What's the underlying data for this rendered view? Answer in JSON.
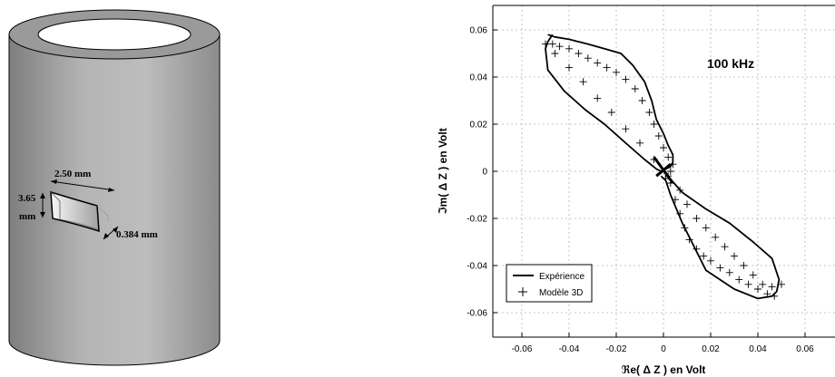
{
  "tube": {
    "width_label": "2.50 mm",
    "height_label_1": "3.65",
    "height_label_2": "mm",
    "depth_label": "0.384 mm"
  },
  "chart_data": {
    "type": "line",
    "annotation": "100 kHz",
    "xlabel": "ℜe( Δ Z ) en Volt",
    "ylabel": "ℑm( Δ Z ) en Volt",
    "xlim": [
      -0.065,
      0.065
    ],
    "ylim": [
      -0.065,
      0.065
    ],
    "x_ticks": [
      "-0.06",
      "-0.04",
      "-0.02",
      "0",
      "0.02",
      "0.04",
      "0.06"
    ],
    "y_ticks": [
      "0.06",
      "0.04",
      "0.02",
      "0",
      "-0.02",
      "-0.04",
      "-0.06"
    ],
    "grid": true,
    "legend_position": "bottom-left",
    "series": [
      {
        "name": "Expérience",
        "style": "solid line",
        "x": [
          -0.049,
          -0.046,
          -0.04,
          -0.032,
          -0.025,
          -0.018,
          -0.013,
          -0.008,
          -0.005,
          -0.003,
          0.0,
          0.002,
          0.004,
          0.004,
          0.003,
          0.001,
          -0.001,
          -0.003,
          -0.008,
          -0.016,
          -0.025,
          -0.033,
          -0.042,
          -0.049,
          -0.05,
          -0.049,
          -0.047,
          0.0,
          0.008,
          0.018,
          0.028,
          0.038,
          0.046,
          0.049,
          0.048,
          0.046,
          0.04,
          0.03,
          0.018,
          0.008,
          0.003,
          0.001,
          -0.001
        ],
        "y": [
          0.058,
          0.057,
          0.056,
          0.054,
          0.052,
          0.05,
          0.045,
          0.038,
          0.03,
          0.022,
          0.016,
          0.011,
          0.007,
          0.004,
          0.002,
          0.001,
          0.0,
          0.001,
          0.005,
          0.012,
          0.02,
          0.026,
          0.034,
          0.043,
          0.052,
          0.055,
          0.058,
          0.0,
          -0.009,
          -0.016,
          -0.022,
          -0.03,
          -0.037,
          -0.046,
          -0.051,
          -0.053,
          -0.054,
          -0.05,
          -0.042,
          -0.022,
          -0.01,
          -0.004,
          -0.002
        ]
      },
      {
        "name": "Modèle 3D",
        "style": "plus markers",
        "x": [
          -0.05,
          -0.047,
          -0.044,
          -0.04,
          -0.036,
          -0.032,
          -0.028,
          -0.024,
          -0.02,
          -0.016,
          -0.012,
          -0.009,
          -0.006,
          -0.004,
          -0.002,
          0.0,
          0.002,
          0.004,
          0.003,
          0.002,
          0.001,
          -0.004,
          -0.01,
          -0.016,
          -0.022,
          -0.028,
          -0.034,
          -0.04,
          -0.046,
          0.003,
          0.005,
          0.007,
          0.009,
          0.011,
          0.014,
          0.017,
          0.02,
          0.024,
          0.028,
          0.032,
          0.036,
          0.04,
          0.044,
          0.047,
          0.05,
          0.046,
          0.042,
          0.038,
          0.034,
          0.03,
          0.026,
          0.022,
          0.018,
          0.014,
          0.01,
          0.007
        ],
        "y": [
          0.054,
          0.054,
          0.053,
          0.052,
          0.05,
          0.048,
          0.046,
          0.044,
          0.042,
          0.039,
          0.035,
          0.03,
          0.025,
          0.02,
          0.015,
          0.01,
          0.006,
          0.003,
          0.0,
          -0.002,
          -0.003,
          0.005,
          0.012,
          0.018,
          0.025,
          0.031,
          0.038,
          0.044,
          0.05,
          -0.005,
          -0.012,
          -0.018,
          -0.024,
          -0.029,
          -0.033,
          -0.036,
          -0.038,
          -0.041,
          -0.043,
          -0.046,
          -0.048,
          -0.05,
          -0.052,
          -0.053,
          -0.048,
          -0.049,
          -0.048,
          -0.044,
          -0.04,
          -0.036,
          -0.032,
          -0.028,
          -0.024,
          -0.02,
          -0.014,
          -0.008
        ]
      }
    ]
  }
}
